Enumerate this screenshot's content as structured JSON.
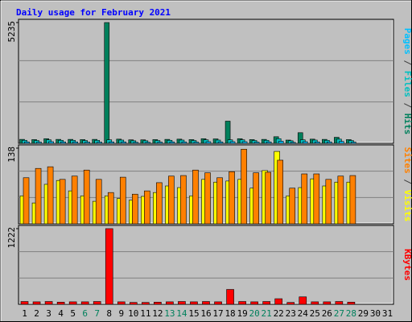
{
  "chart_data": {
    "type": "bar",
    "title": "Daily usage for February 2021",
    "title_color": "#0000ff",
    "categories": [
      "1",
      "2",
      "3",
      "4",
      "5",
      "6",
      "7",
      "8",
      "9",
      "10",
      "11",
      "12",
      "13",
      "14",
      "15",
      "16",
      "17",
      "18",
      "19",
      "20",
      "21",
      "22",
      "23",
      "24",
      "25",
      "26",
      "27",
      "28",
      "29",
      "30",
      "31"
    ],
    "highlight_indices": [
      5,
      6,
      12,
      13,
      19,
      20,
      26,
      27
    ],
    "highlight_color": "#00805c",
    "separator": "/",
    "panels": [
      {
        "ylim": [
          0,
          5235
        ],
        "yticks": [
          5235
        ],
        "series": [
          {
            "name": "Hits",
            "color": "#00805c",
            "values": [
              170,
              160,
              200,
              170,
              170,
              160,
              170,
              5235,
              180,
              150,
              150,
              160,
              170,
              180,
              160,
              200,
              190,
              960,
              200,
              160,
              170,
              285,
              140,
              460,
              180,
              170,
              260,
              160,
              null,
              null,
              null
            ]
          },
          {
            "name": "Files",
            "color": "#00c0c0",
            "values": [
              130,
              120,
              150,
              130,
              130,
              120,
              130,
              150,
              140,
              110,
              110,
              120,
              130,
              140,
              120,
              150,
              140,
              150,
              150,
              120,
              130,
              200,
              110,
              150,
              140,
              130,
              180,
              120,
              null,
              null,
              null
            ]
          },
          {
            "name": "Pages",
            "color": "#00c0ff",
            "values": [
              60,
              50,
              70,
              60,
              60,
              50,
              50,
              60,
              60,
              40,
              40,
              50,
              60,
              60,
              50,
              70,
              60,
              70,
              70,
              50,
              60,
              90,
              40,
              70,
              60,
              60,
              80,
              50,
              null,
              null,
              null
            ]
          }
        ]
      },
      {
        "ylim": [
          0,
          138
        ],
        "yticks": [
          138
        ],
        "series": [
          {
            "name": "Visits",
            "color": "#ffff00",
            "values": [
              51,
              38,
              72,
              79,
              60,
              51,
              41,
              51,
              46,
              43,
              50,
              57,
              69,
              66,
              51,
              81,
              76,
              78,
              81,
              65,
              97,
              132,
              51,
              66,
              82,
              69,
              76,
              76,
              null,
              null,
              null
            ]
          },
          {
            "name": "Sites",
            "color": "#ff8000",
            "values": [
              84,
              101,
              104,
              81,
              87,
              98,
              81,
              57,
              85,
              54,
              60,
              75,
              87,
              88,
              98,
              93,
              84,
              95,
              136,
              93,
              94,
              116,
              65,
              91,
              91,
              81,
              87,
              88,
              null,
              null,
              null
            ]
          }
        ]
      },
      {
        "ylim": [
          0,
          1222
        ],
        "yticks": [
          1222
        ],
        "series": [
          {
            "name": "KBytes",
            "color": "#ff0000",
            "values": [
              45,
              40,
              45,
              35,
              40,
              40,
              45,
              1222,
              40,
              30,
              30,
              35,
              40,
              45,
              40,
              45,
              40,
              240,
              45,
              40,
              45,
              90,
              30,
              120,
              40,
              40,
              45,
              35,
              null,
              null,
              null
            ]
          }
        ]
      }
    ]
  }
}
